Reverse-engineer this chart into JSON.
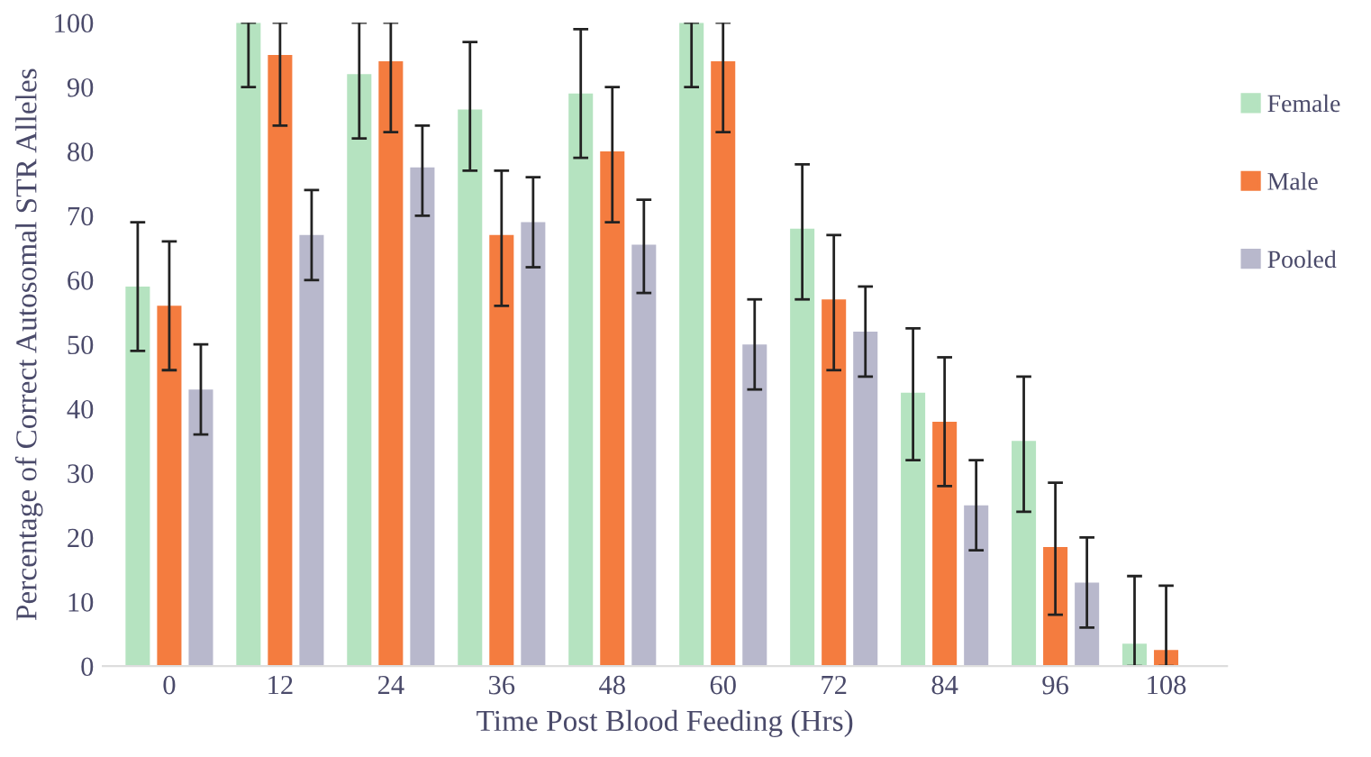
{
  "chart_data": {
    "type": "bar",
    "xlabel": "Time Post Blood Feeding (Hrs)",
    "ylabel": "Percentage of Correct Autosomal STR Alleles",
    "categories": [
      "0",
      "12",
      "24",
      "36",
      "48",
      "60",
      "72",
      "84",
      "96",
      "108"
    ],
    "series": [
      {
        "name": "Female",
        "color": "#b5e3c0",
        "values": [
          59,
          100,
          92,
          86.5,
          89,
          100,
          68,
          42.5,
          35,
          3.5
        ],
        "errors": [
          [
            49,
            69
          ],
          [
            90,
            100
          ],
          [
            82,
            100
          ],
          [
            77,
            97
          ],
          [
            79,
            99
          ],
          [
            90,
            100
          ],
          [
            57,
            78
          ],
          [
            32,
            52.5
          ],
          [
            24,
            45
          ],
          [
            0,
            14
          ]
        ]
      },
      {
        "name": "Male",
        "color": "#f47c3f",
        "values": [
          56,
          95,
          94,
          67,
          80,
          94,
          57,
          38,
          18.5,
          2.5
        ],
        "errors": [
          [
            46,
            66
          ],
          [
            84,
            100
          ],
          [
            83,
            100
          ],
          [
            56,
            77
          ],
          [
            69,
            90
          ],
          [
            83,
            100
          ],
          [
            46,
            67
          ],
          [
            28,
            48
          ],
          [
            8,
            28.5
          ],
          [
            0,
            12.5
          ]
        ]
      },
      {
        "name": "Pooled",
        "color": "#b8b8cc",
        "values": [
          43,
          67,
          77.5,
          69,
          65.5,
          50,
          52,
          25,
          13,
          null
        ],
        "errors": [
          [
            36,
            50
          ],
          [
            60,
            74
          ],
          [
            70,
            84
          ],
          [
            62,
            76
          ],
          [
            58,
            72.5
          ],
          [
            43,
            57
          ],
          [
            45,
            59
          ],
          [
            18,
            32
          ],
          [
            6,
            20
          ],
          null
        ]
      }
    ],
    "ylim": [
      0,
      100
    ],
    "yticks": [
      0,
      10,
      20,
      30,
      40,
      50,
      60,
      70,
      80,
      90,
      100
    ],
    "grid": false,
    "legend": "right"
  }
}
